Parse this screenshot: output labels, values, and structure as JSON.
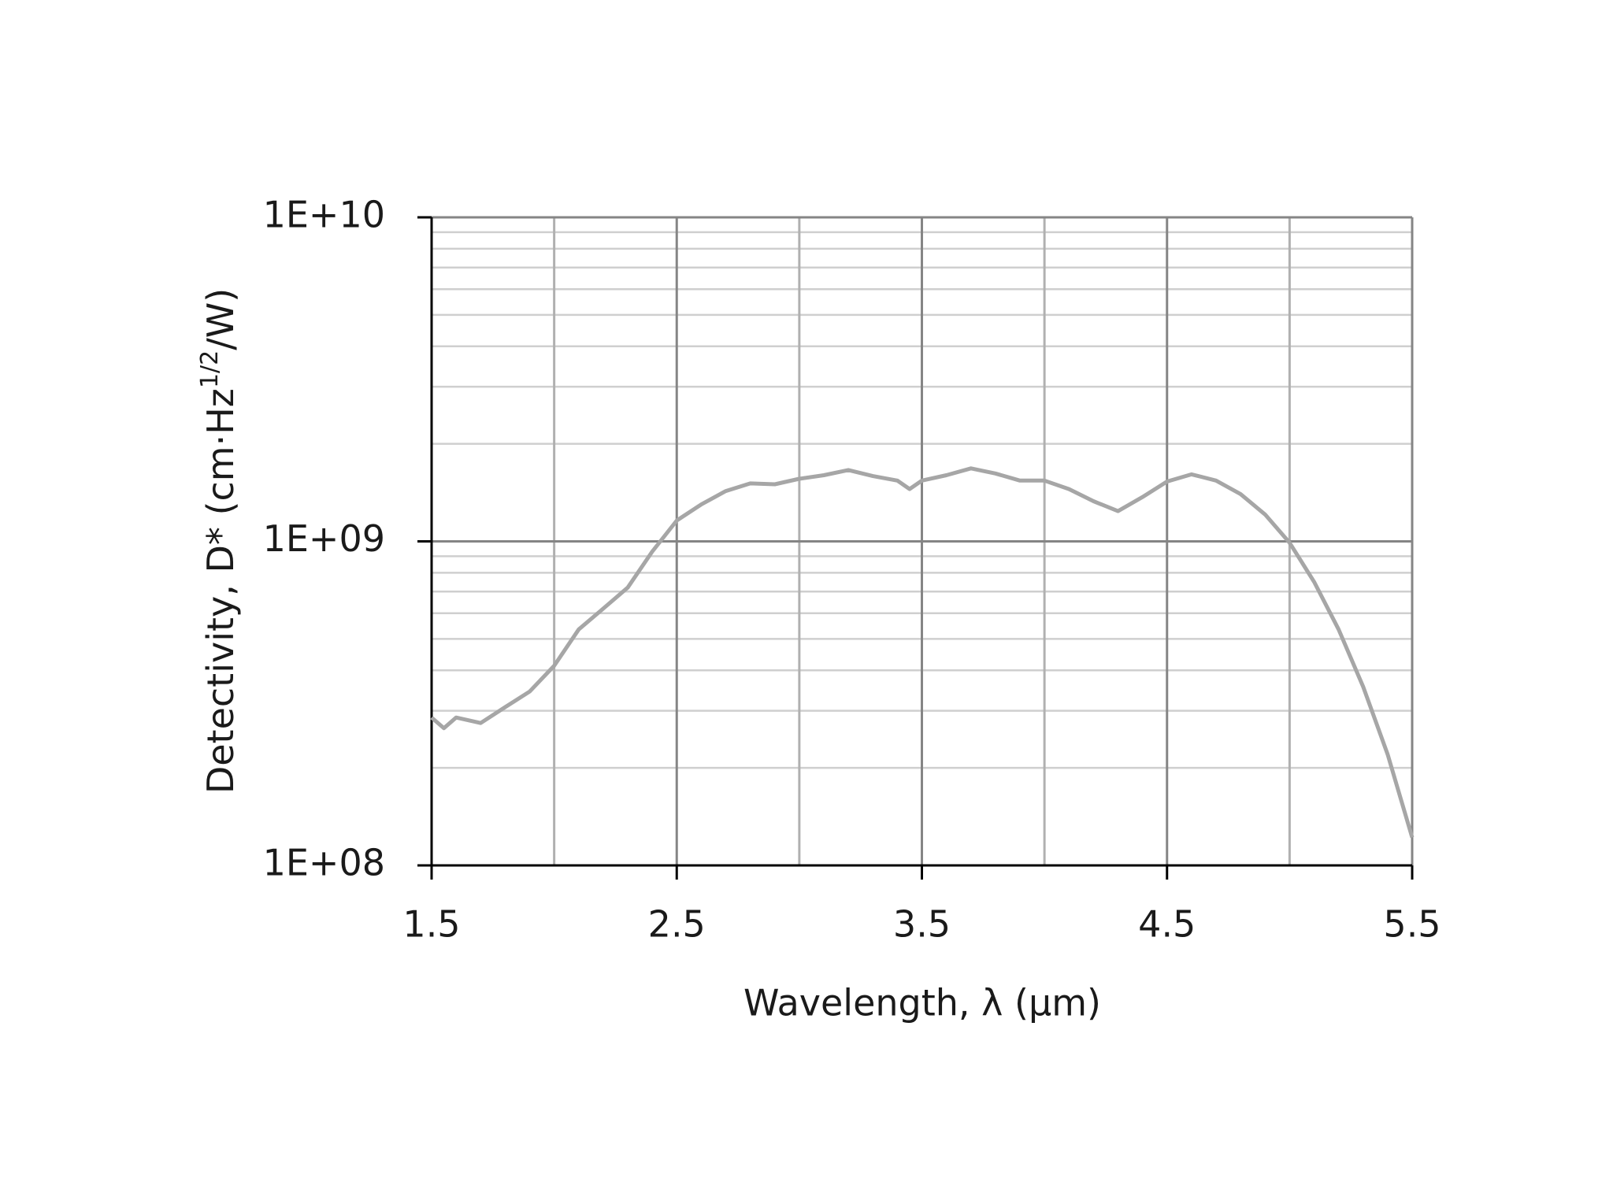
{
  "chart_data": {
    "type": "line",
    "xlabel": "Wavelength, λ (µm)",
    "ylabel": {
      "text": "Detectivity, D* (cm·Hz",
      "sup": "1/2",
      "end": "/W)"
    },
    "x": [
      1.5,
      1.55,
      1.6,
      1.7,
      1.8,
      1.9,
      2.0,
      2.1,
      2.2,
      2.3,
      2.4,
      2.5,
      2.6,
      2.7,
      2.8,
      2.9,
      3.0,
      3.1,
      3.2,
      3.3,
      3.4,
      3.45,
      3.5,
      3.6,
      3.7,
      3.8,
      3.9,
      4.0,
      4.1,
      4.2,
      4.3,
      4.4,
      4.5,
      4.6,
      4.7,
      4.8,
      4.9,
      5.0,
      5.1,
      5.2,
      5.3,
      5.4,
      5.5
    ],
    "series": [
      {
        "name": "D*",
        "color": "#a6a6a6",
        "values": [
          286000000,
          265000000,
          286000000,
          275000000,
          308000000,
          344000000,
          413000000,
          535000000,
          620000000,
          720000000,
          930000000,
          1160000000,
          1300000000,
          1430000000,
          1510000000,
          1500000000,
          1560000000,
          1600000000,
          1660000000,
          1590000000,
          1540000000,
          1450000000,
          1540000000,
          1600000000,
          1680000000,
          1620000000,
          1540000000,
          1540000000,
          1450000000,
          1330000000,
          1240000000,
          1370000000,
          1530000000,
          1610000000,
          1540000000,
          1400000000,
          1210000000,
          990000000,
          750000000,
          535000000,
          356000000,
          220000000,
          122000000
        ]
      }
    ],
    "xlim": [
      1.5,
      5.5
    ],
    "xticks": [
      1.5,
      2.5,
      3.5,
      4.5,
      5.5
    ],
    "xminor": [
      2,
      3,
      4,
      5
    ],
    "ylim": [
      100000000,
      10000000000
    ],
    "ylog": true,
    "yticks": [
      {
        "value": 100000000,
        "label": "1E+08"
      },
      {
        "value": 1000000000,
        "label": "1E+09"
      },
      {
        "value": 10000000000,
        "label": "1E+10"
      }
    ],
    "grid": true
  }
}
